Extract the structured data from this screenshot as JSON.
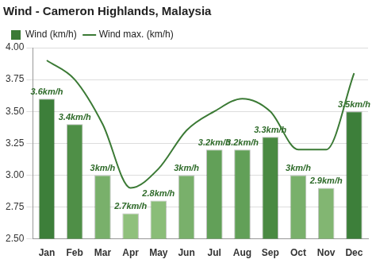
{
  "chart_data": {
    "type": "bar",
    "title": "Wind - Cameron Highlands, Malaysia",
    "categories": [
      "Jan",
      "Feb",
      "Mar",
      "Apr",
      "May",
      "Jun",
      "Jul",
      "Aug",
      "Sep",
      "Oct",
      "Nov",
      "Dec"
    ],
    "series": [
      {
        "name": "Wind (km/h)",
        "type": "bar",
        "color": "#3b7a35",
        "colors": [
          "#3d7f3a",
          "#4f8f47",
          "#79b06b",
          "#8fc07c",
          "#8abd78",
          "#79b06b",
          "#62a058",
          "#62a058",
          "#4a8a42",
          "#79b06b",
          "#82b672",
          "#3d7f3a"
        ],
        "values": [
          3.6,
          3.4,
          3.0,
          2.7,
          2.8,
          3.0,
          3.2,
          3.2,
          3.3,
          3.0,
          2.9,
          3.5
        ],
        "value_labels": [
          "3.6km/h",
          "3.4km/h",
          "3km/h",
          "2.7km/h",
          "2.8km/h",
          "3km/h",
          "3.2km/h",
          "3.2km/h",
          "3.3km/h",
          "3km/h",
          "2.9km/h",
          "3.5km/h"
        ]
      },
      {
        "name": "Wind max. (km/h)",
        "type": "line",
        "color": "#3b7a35",
        "values": [
          3.9,
          3.75,
          3.4,
          2.9,
          3.05,
          3.35,
          3.5,
          3.6,
          3.5,
          3.2,
          3.2,
          3.8
        ]
      }
    ],
    "ylim": [
      2.5,
      4.0
    ],
    "yticks": [
      {
        "value": 2.5,
        "label": "2.50"
      },
      2.75,
      {
        "value": 3.0,
        "label": "3.00"
      },
      3.25,
      {
        "value": 3.5,
        "label": "3.50"
      },
      3.75,
      {
        "value": 4.0,
        "label": "4.00"
      }
    ],
    "grid": true,
    "legend": "top-left",
    "data_labels": true
  }
}
